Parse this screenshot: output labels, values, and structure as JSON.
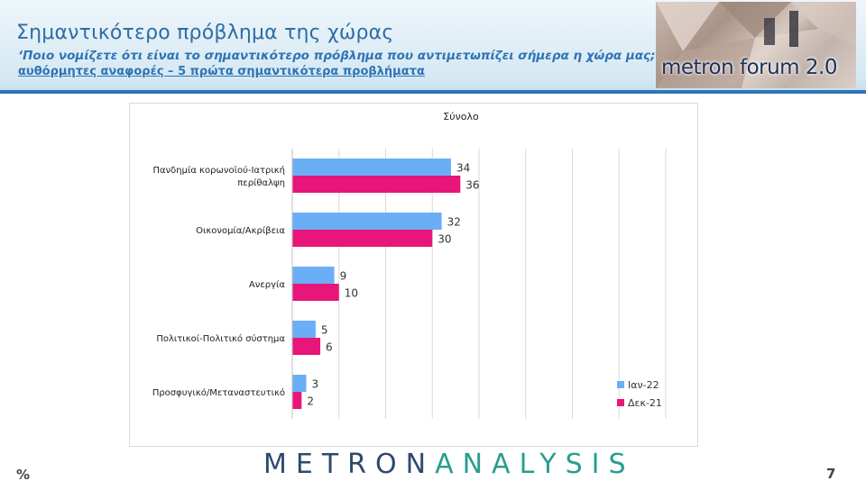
{
  "header": {
    "title": "Σημαντικότερο πρόβλημα της χώρας",
    "subtitle": "‘Ποιο νομίζετε ότι  είναι το σημαντικότερο πρόβλημα που αντιμετωπίζει σήμερα η χώρα μας;’",
    "subtitle2": "αυθόρμητες αναφορές – 5 πρώτα σημαντικότερα προβλήματα",
    "logo": "metron forum 2.0"
  },
  "footer": {
    "brand_a": "METRON",
    "brand_b": "ANALYSIS",
    "unit": "%",
    "page": "7"
  },
  "colors": {
    "ian22": "#6aaef5",
    "dek21": "#e8157a",
    "title": "#2e6da4"
  },
  "chart_data": {
    "type": "bar",
    "orientation": "horizontal",
    "title": "Σύνολο",
    "categories": [
      "Πανδημία κορωνοϊού-Ιατρική περίθαλψη",
      "Οικονομία/Ακρίβεια",
      "Ανεργία",
      "Πολιτικοί-Πολιτικό σύστημα",
      "Προσφυγικό/Μεταναστευτικό"
    ],
    "category_lines": [
      [
        "Πανδημία κορωνοϊού-Ιατρική",
        "περίθαλψη"
      ],
      [
        "Οικονομία/Ακρίβεια"
      ],
      [
        "Ανεργία"
      ],
      [
        "Πολιτικοί-Πολιτικό σύστημα"
      ],
      [
        "Προσφυγικό/Μεταναστευτικό"
      ]
    ],
    "series": [
      {
        "name": "Ιαν-22",
        "values": [
          34,
          32,
          9,
          5,
          3
        ]
      },
      {
        "name": "Δεκ-21",
        "values": [
          36,
          30,
          10,
          6,
          2
        ]
      }
    ],
    "xlim": [
      0,
      80
    ],
    "grid": true,
    "legend": "bottom-right",
    "data_labels": true
  }
}
